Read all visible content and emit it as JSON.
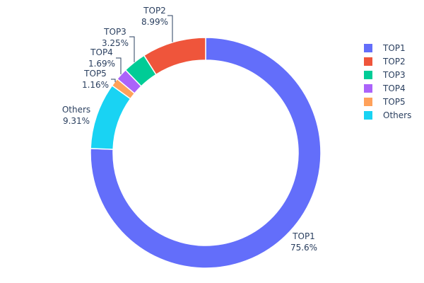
{
  "chart_data": {
    "type": "pie",
    "hole": true,
    "direction": "clockwise",
    "start": "top",
    "categories": [
      "TOP1",
      "TOP2",
      "TOP3",
      "TOP4",
      "TOP5",
      "Others"
    ],
    "values": [
      75.6,
      8.99,
      3.25,
      1.69,
      1.16,
      9.31
    ],
    "value_labels": [
      "75.6%",
      "8.99%",
      "3.25%",
      "1.69%",
      "1.16%",
      "9.31%"
    ],
    "draw_order": [
      "TOP1",
      "Others",
      "TOP5",
      "TOP4",
      "TOP3",
      "TOP2"
    ],
    "colors": {
      "TOP1": "#636efa",
      "TOP2": "#ef553b",
      "TOP3": "#00cc96",
      "TOP4": "#ab63fa",
      "TOP5": "#ffa15a",
      "Others": "#19d3f3"
    },
    "legend": {
      "placement": "right",
      "items": [
        "TOP1",
        "TOP2",
        "TOP3",
        "TOP4",
        "TOP5",
        "Others"
      ]
    }
  }
}
